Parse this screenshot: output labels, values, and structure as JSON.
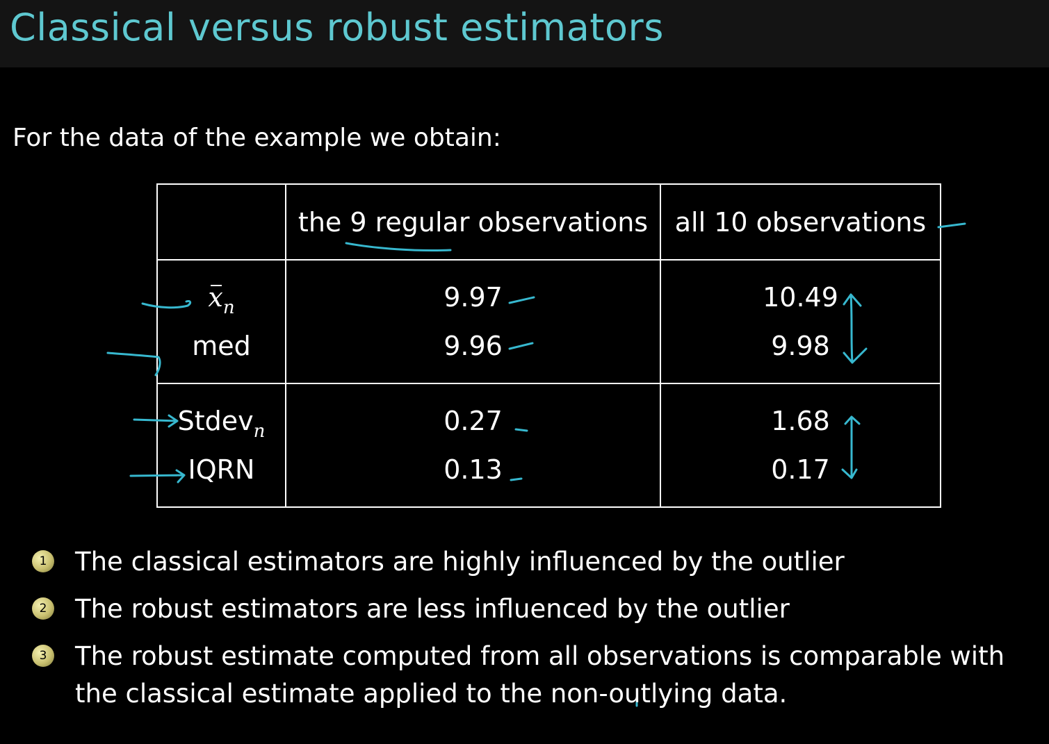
{
  "slide": {
    "title": "Classical versus robust estimators",
    "intro": "For the data of the example we obtain:"
  },
  "table": {
    "headers": [
      "",
      "the 9 regular observations",
      "all 10 observations"
    ],
    "row_labels": {
      "mean_symbol": "x",
      "mean_subscript": "n",
      "median": "med",
      "stdev_label": "Stdev",
      "stdev_subscript": "n",
      "iqrn": "IQRN"
    },
    "regular": {
      "mean": "9.97",
      "median": "9.96",
      "stdev": "0.27",
      "iqrn": "0.13"
    },
    "all": {
      "mean": "10.49",
      "median": "9.98",
      "stdev": "1.68",
      "iqrn": "0.17"
    }
  },
  "bullets": [
    {
      "number": "1",
      "text": "The classical estimators are highly influenced by the outlier"
    },
    {
      "number": "2",
      "text": "The robust estimators are less influenced by the outlier"
    },
    {
      "number": "3",
      "text": "The robust estimate computed from all observations is comparable with the classical estimate applied to the non-outlying data."
    }
  ],
  "colors": {
    "title": "#5ec8d0",
    "annotation_ink": "#37b8cf",
    "background": "#000000",
    "title_bar": "#141414"
  }
}
